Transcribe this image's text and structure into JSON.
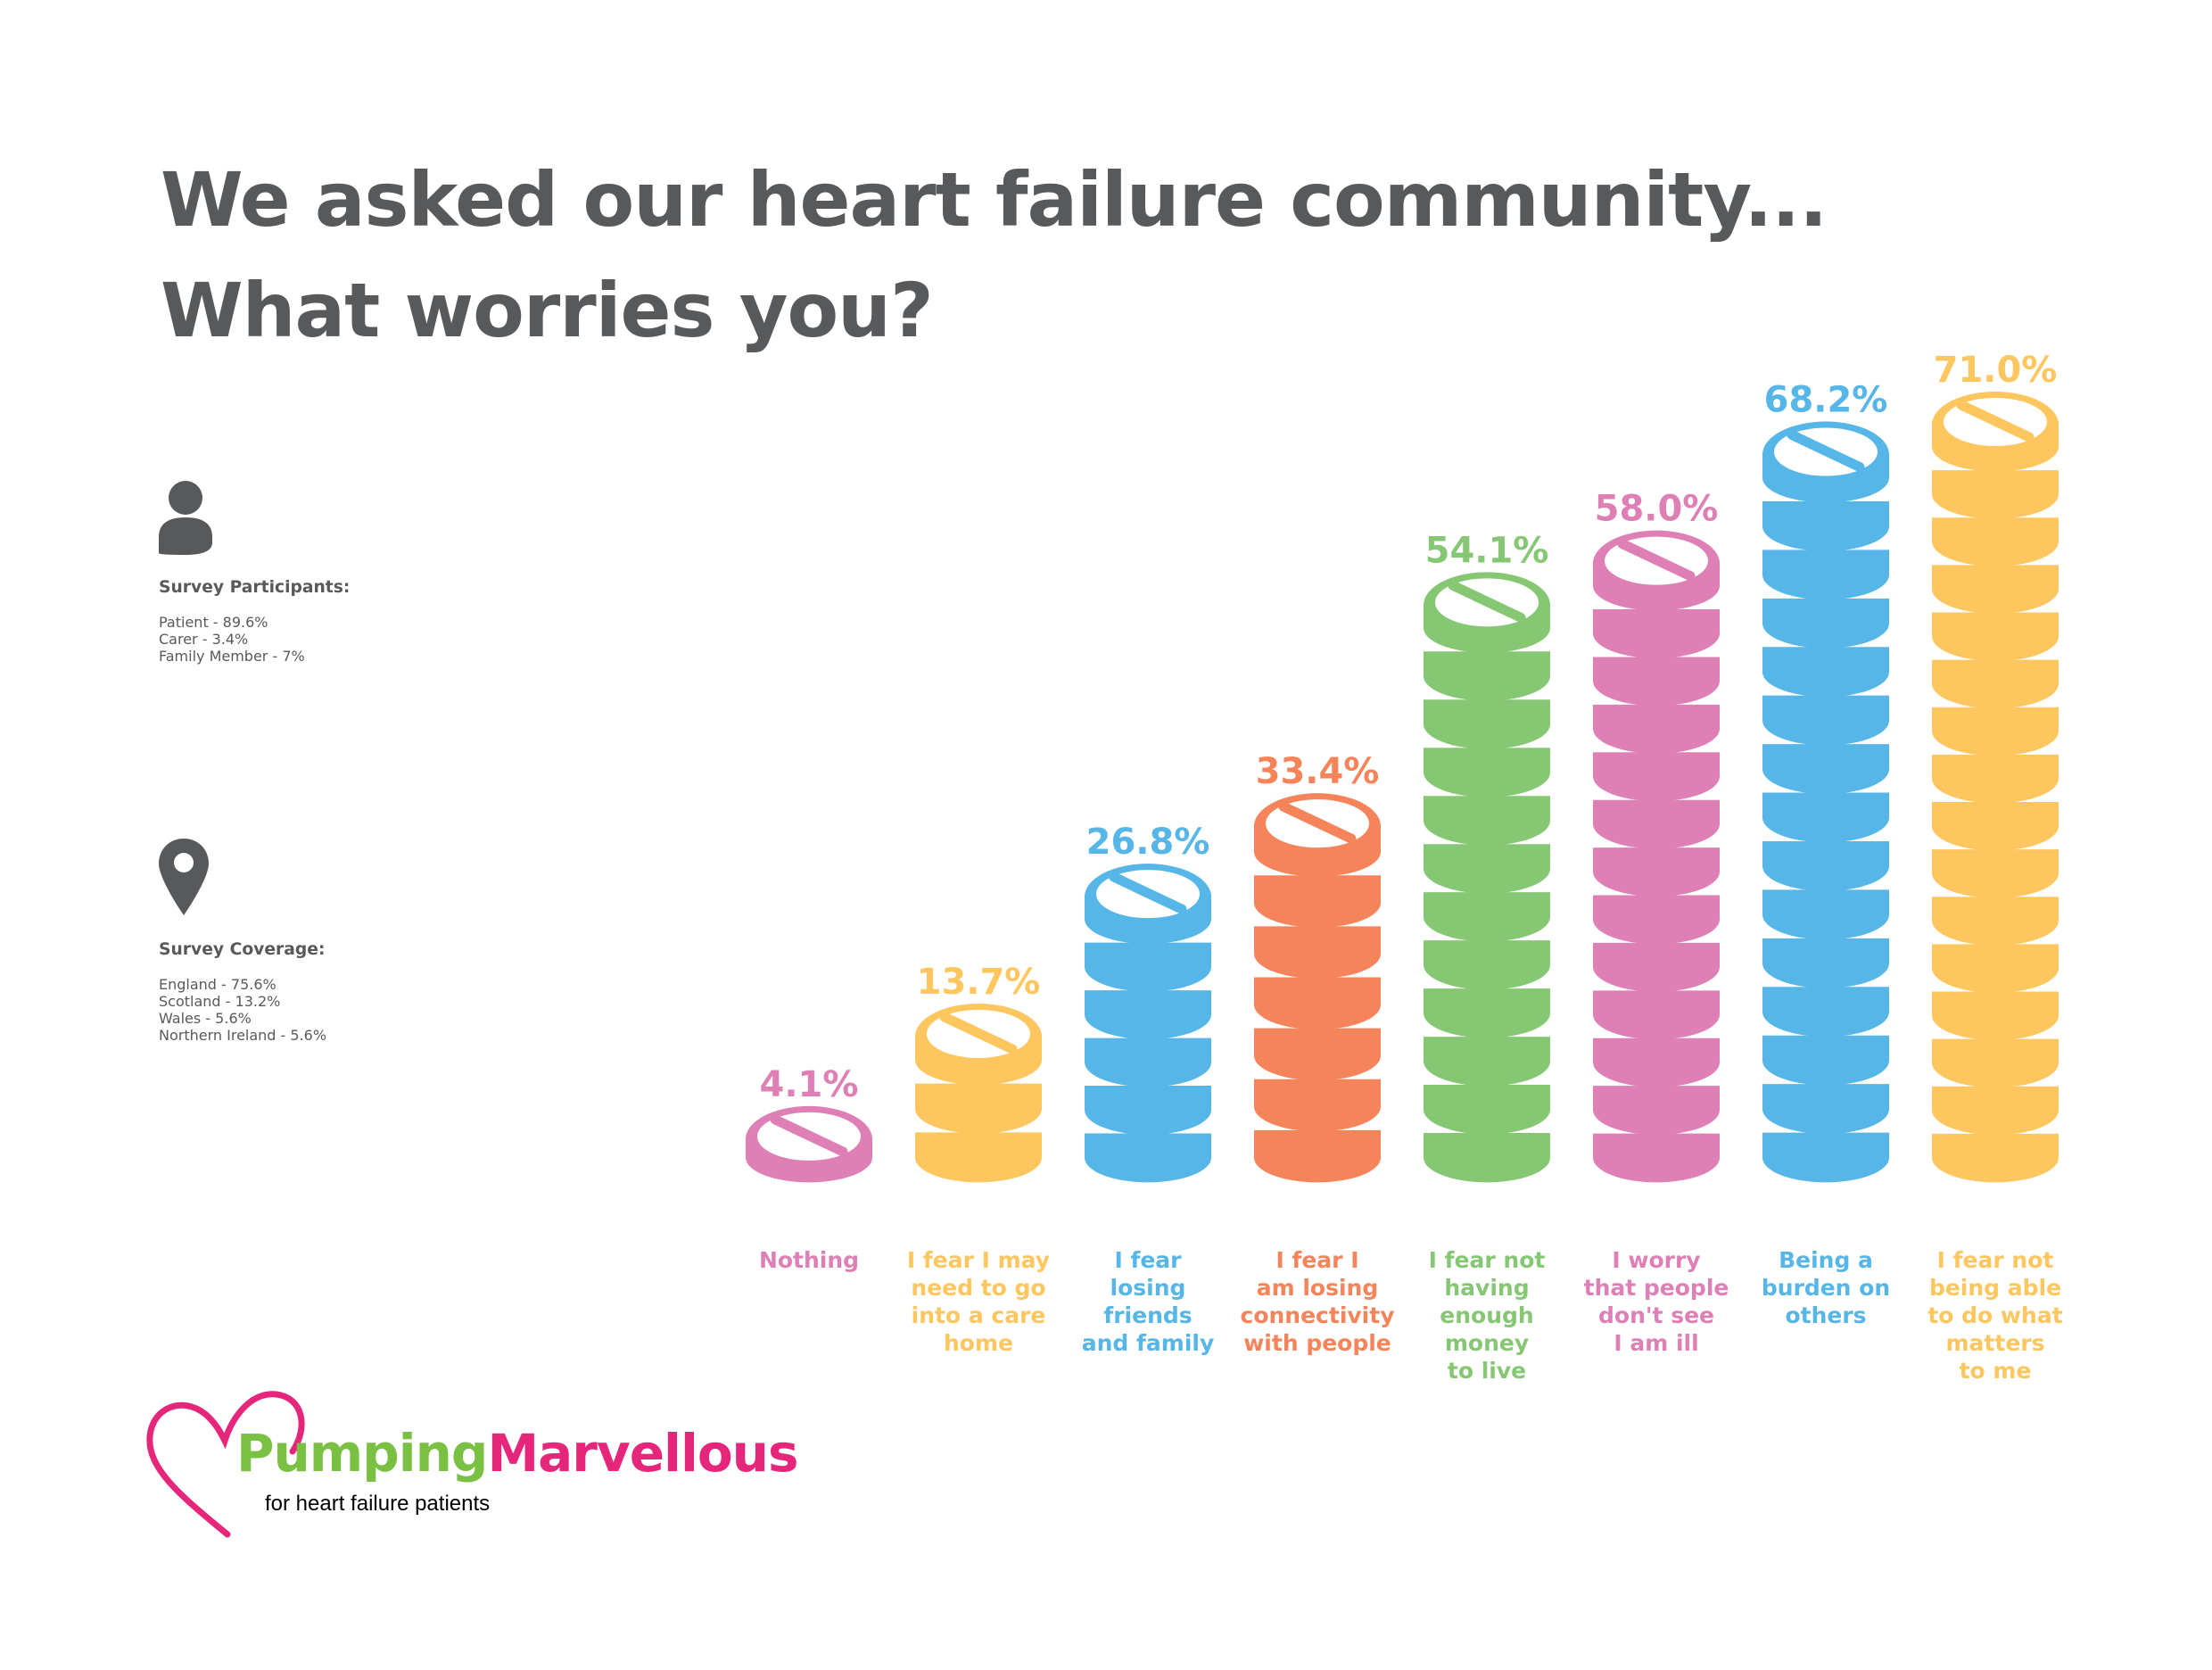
{
  "title": {
    "line1": "We asked our heart failure community...",
    "line2": "What worries you?"
  },
  "participants": {
    "heading": "Survey Participants:",
    "items": [
      "Patient - 89.6%",
      "Carer - 3.4%",
      "Family Member - 7%"
    ],
    "icon": "person-icon"
  },
  "coverage": {
    "heading": "Survey Coverage:",
    "items": [
      "England - 75.6%",
      "Scotland - 13.2%",
      "Wales - 5.6%",
      "Northern Ireland - 5.6%"
    ],
    "icon": "location-pin-icon"
  },
  "logo": {
    "brand_part1": "Pumping",
    "brand_part2": "Marvellous",
    "tagline": "for heart failure patients",
    "heart_color": "#e6267b",
    "part1_color": "#79c043",
    "part2_color": "#e6267b",
    "icon": "heart-outline-icon"
  },
  "chart_data": {
    "type": "bar",
    "mark": "stacked pills",
    "unit": "%",
    "categories": [
      [
        "Nothing"
      ],
      [
        "I fear I may",
        "need to go",
        "into a care",
        "home"
      ],
      [
        "I fear",
        "losing",
        "friends",
        "and family"
      ],
      [
        "I fear I",
        "am losing",
        "connectivity",
        "with people"
      ],
      [
        "I fear not",
        "having",
        "enough",
        "money",
        "to live"
      ],
      [
        "I worry",
        "that people",
        "don't see",
        "I am ill"
      ],
      [
        "Being a",
        "burden on",
        "others"
      ],
      [
        "I fear not",
        "being able",
        "to do what",
        "matters",
        "to me"
      ]
    ],
    "values": [
      4.1,
      13.7,
      26.8,
      33.4,
      54.1,
      58.0,
      68.2,
      71.0
    ],
    "value_labels": [
      "4.1%",
      "13.7%",
      "26.8%",
      "33.4%",
      "54.1%",
      "58.0%",
      "68.2%",
      "71.0%"
    ],
    "colors": [
      "#de80b5",
      "#fec65f",
      "#56b6e7",
      "#f5845a",
      "#86c774",
      "#de80b5",
      "#56b6e7",
      "#fec65f"
    ],
    "ylim": [
      0,
      71.0
    ]
  }
}
